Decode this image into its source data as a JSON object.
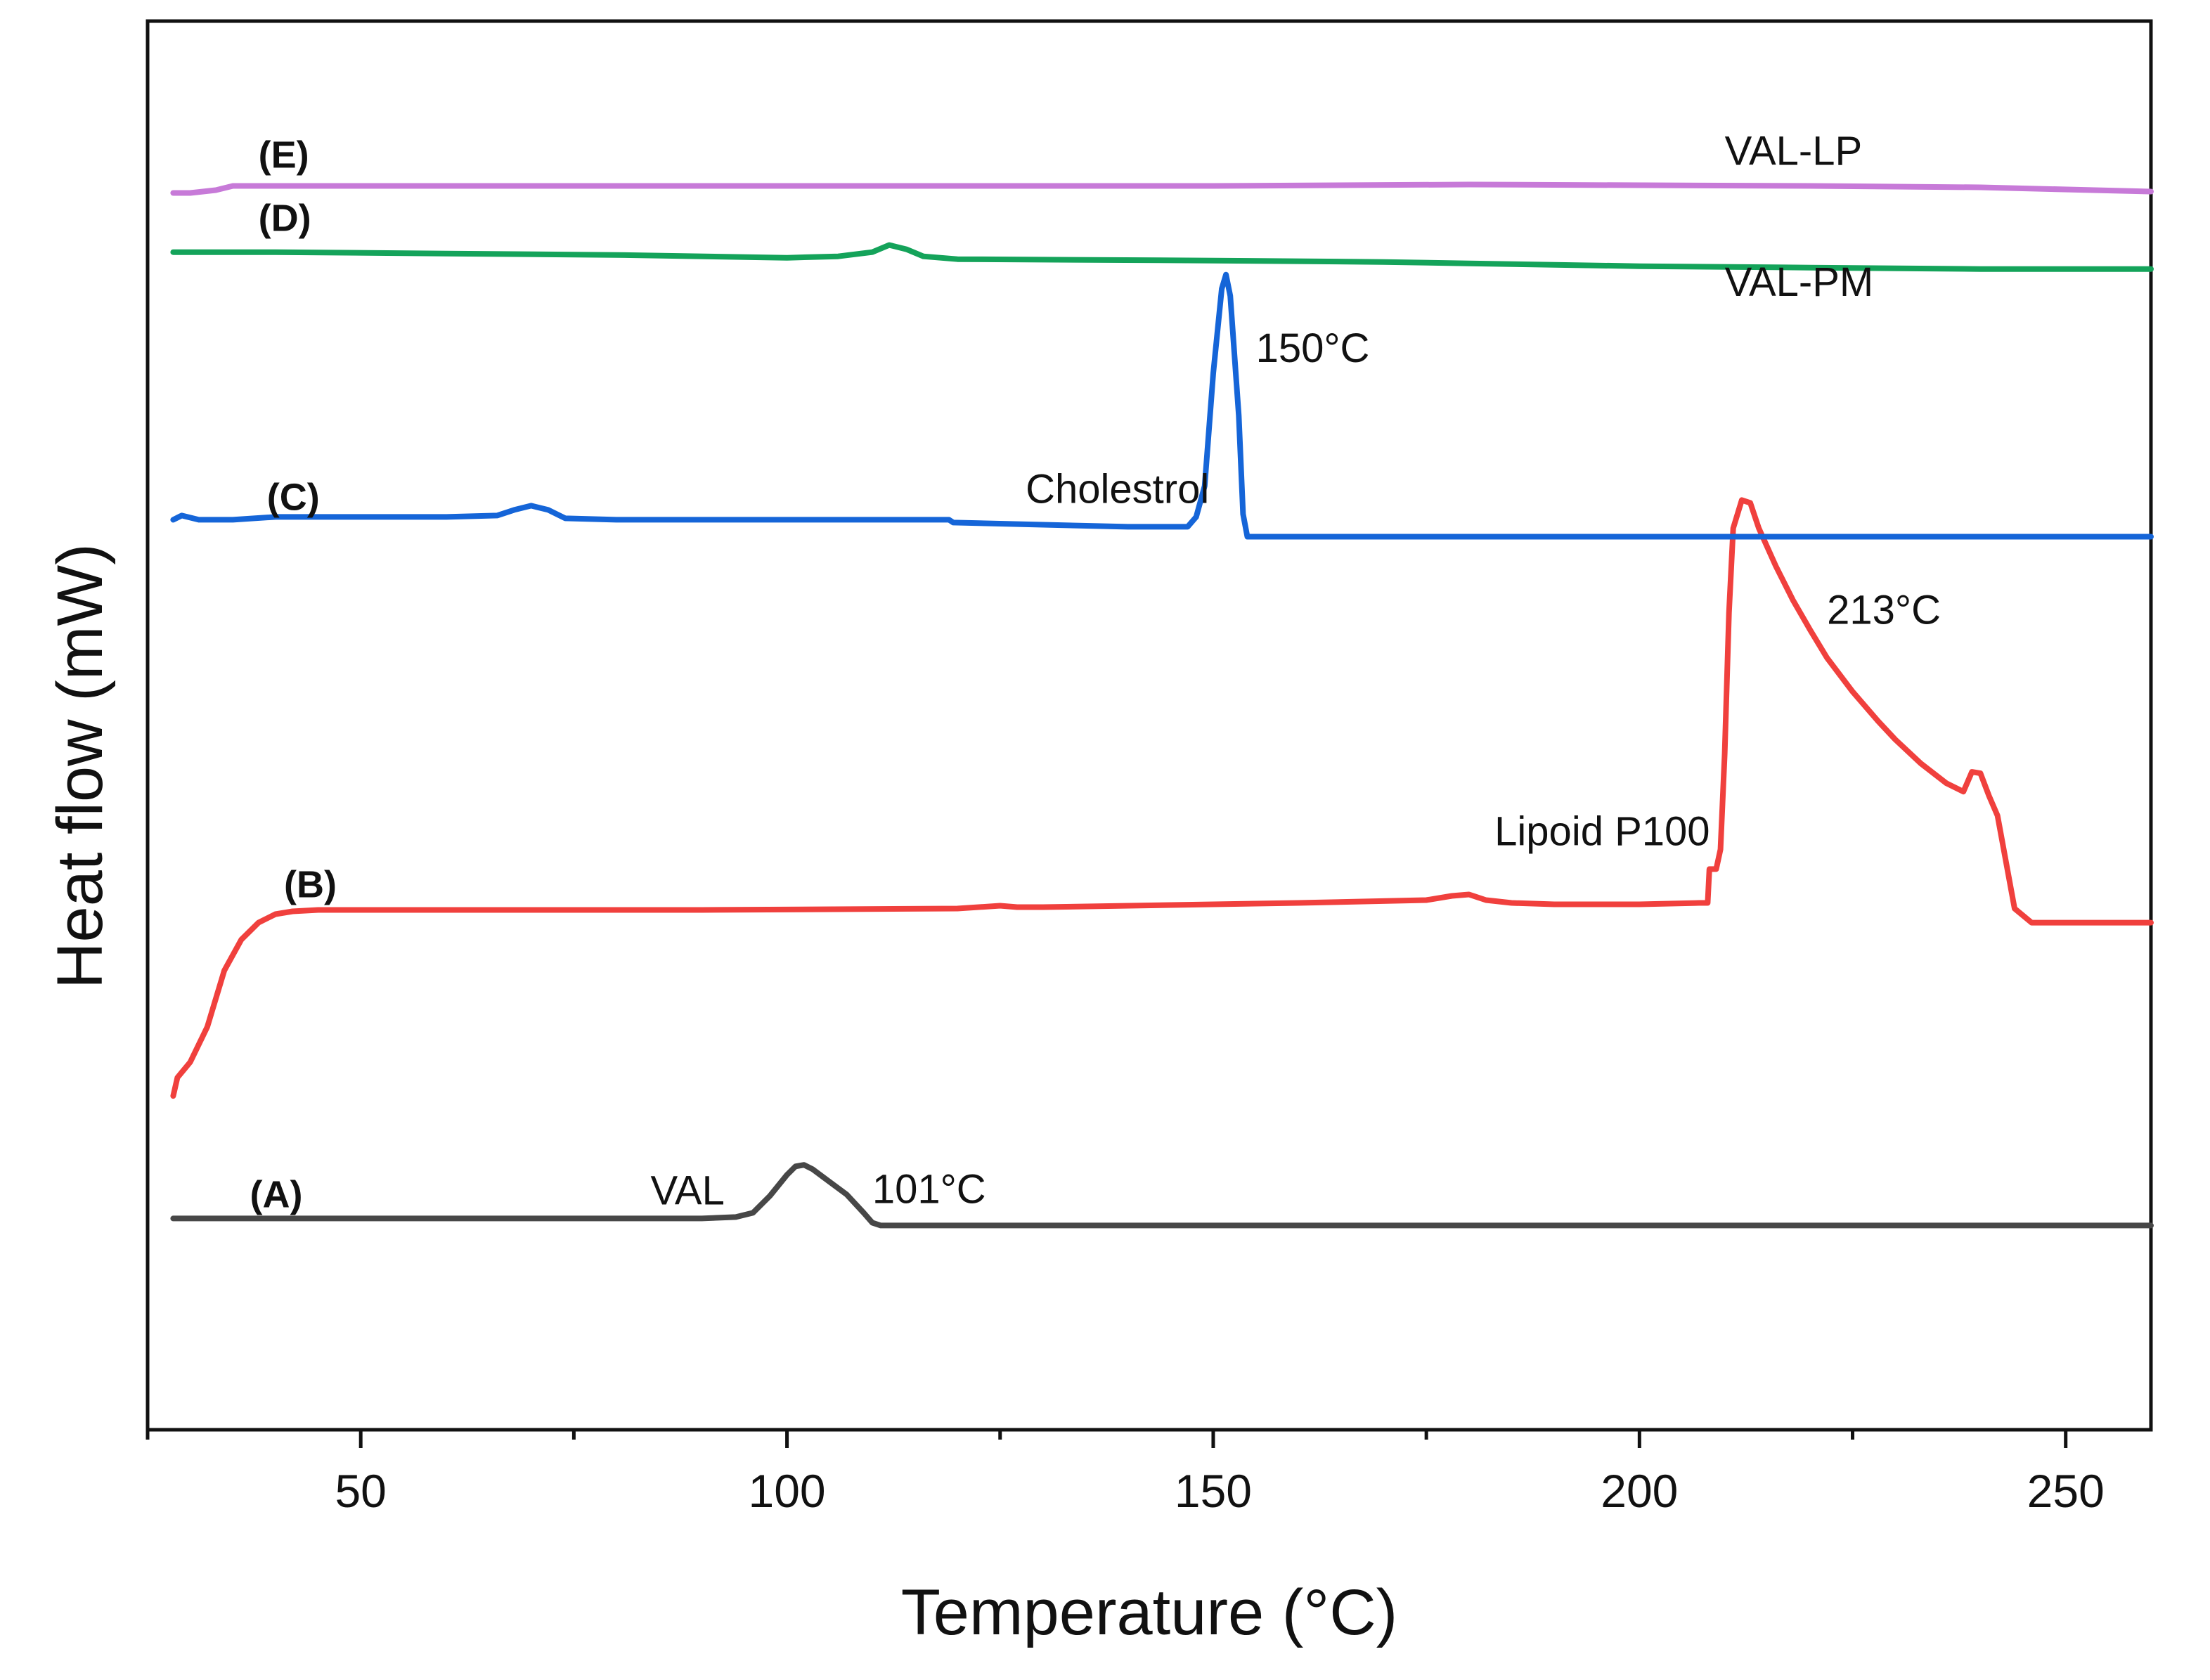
{
  "chart_data": {
    "type": "line",
    "title": "",
    "xlabel": "Temperature (°C)",
    "ylabel": "Heat flow (mW)",
    "xlim": [
      25,
      260
    ],
    "x_ticks": [
      50,
      100,
      150,
      200,
      250
    ],
    "x_tick_labels": [
      "50",
      "100",
      "150",
      "200",
      "250"
    ],
    "ylim": [
      0,
      100
    ],
    "y_ticks_shown": false,
    "grid": false,
    "series": [
      {
        "name": "(A)",
        "color": "#474747",
        "points": [
          [
            28,
            15.0
          ],
          [
            50,
            15.0
          ],
          [
            75,
            15.0
          ],
          [
            90,
            15.0
          ],
          [
            94,
            15.1
          ],
          [
            96,
            15.4
          ],
          [
            98,
            16.6
          ],
          [
            100,
            18.1
          ],
          [
            101,
            18.7
          ],
          [
            102,
            18.8
          ],
          [
            103,
            18.5
          ],
          [
            105,
            17.6
          ],
          [
            107,
            16.7
          ],
          [
            109,
            15.4
          ],
          [
            110,
            14.7
          ],
          [
            111,
            14.5
          ],
          [
            130,
            14.5
          ],
          [
            180,
            14.5
          ],
          [
            260,
            14.5
          ]
        ]
      },
      {
        "name": "(B)",
        "color": "#f0403d",
        "points": [
          [
            28,
            23.7
          ],
          [
            28.5,
            25.0
          ],
          [
            30,
            26.1
          ],
          [
            32,
            28.6
          ],
          [
            34,
            32.6
          ],
          [
            36,
            34.8
          ],
          [
            38,
            36.0
          ],
          [
            40,
            36.6
          ],
          [
            42,
            36.8
          ],
          [
            45,
            36.9
          ],
          [
            60,
            36.9
          ],
          [
            90,
            36.9
          ],
          [
            120,
            37.0
          ],
          [
            125,
            37.2
          ],
          [
            127,
            37.1
          ],
          [
            130,
            37.1
          ],
          [
            160,
            37.4
          ],
          [
            175,
            37.6
          ],
          [
            178,
            37.9
          ],
          [
            180,
            38.0
          ],
          [
            182,
            37.6
          ],
          [
            185,
            37.4
          ],
          [
            190,
            37.3
          ],
          [
            200,
            37.3
          ],
          [
            207,
            37.4
          ],
          [
            208,
            37.4
          ],
          [
            208.2,
            39.8
          ],
          [
            209,
            39.8
          ],
          [
            209.5,
            41.2
          ],
          [
            210,
            48.0
          ],
          [
            210.5,
            58.0
          ],
          [
            211,
            64.0
          ],
          [
            212,
            66.0
          ],
          [
            213,
            65.8
          ],
          [
            214,
            64.0
          ],
          [
            216,
            61.3
          ],
          [
            218,
            58.9
          ],
          [
            220,
            56.8
          ],
          [
            222,
            54.8
          ],
          [
            225,
            52.4
          ],
          [
            228,
            50.3
          ],
          [
            230,
            49.0
          ],
          [
            233,
            47.3
          ],
          [
            236,
            45.9
          ],
          [
            238,
            45.3
          ],
          [
            239,
            46.7
          ],
          [
            240,
            46.6
          ],
          [
            241,
            45.0
          ],
          [
            242,
            43.6
          ],
          [
            244,
            37.0
          ],
          [
            246,
            36.0
          ],
          [
            250,
            36.0
          ],
          [
            260,
            36.0
          ]
        ]
      },
      {
        "name": "(C)",
        "color": "#1565d8",
        "points": [
          [
            28,
            64.6
          ],
          [
            29,
            64.9
          ],
          [
            31,
            64.6
          ],
          [
            35,
            64.6
          ],
          [
            40,
            64.8
          ],
          [
            50,
            64.8
          ],
          [
            60,
            64.8
          ],
          [
            66,
            64.9
          ],
          [
            68,
            65.3
          ],
          [
            70,
            65.6
          ],
          [
            72,
            65.3
          ],
          [
            74,
            64.7
          ],
          [
            80,
            64.6
          ],
          [
            100,
            64.6
          ],
          [
            119,
            64.6
          ],
          [
            119.5,
            64.4
          ],
          [
            140,
            64.1
          ],
          [
            147,
            64.1
          ],
          [
            148,
            64.8
          ],
          [
            149,
            67.0
          ],
          [
            150,
            75.0
          ],
          [
            151,
            81.0
          ],
          [
            151.5,
            82.0
          ],
          [
            152,
            80.5
          ],
          [
            153,
            72.0
          ],
          [
            153.5,
            65.0
          ],
          [
            154,
            63.4
          ],
          [
            170,
            63.4
          ],
          [
            200,
            63.4
          ],
          [
            260,
            63.4
          ]
        ]
      },
      {
        "name": "(D)",
        "color": "#14a35a",
        "points": [
          [
            28,
            83.6
          ],
          [
            40,
            83.6
          ],
          [
            60,
            83.5
          ],
          [
            80,
            83.4
          ],
          [
            100,
            83.2
          ],
          [
            106,
            83.3
          ],
          [
            110,
            83.6
          ],
          [
            112,
            84.1
          ],
          [
            114,
            83.8
          ],
          [
            116,
            83.3
          ],
          [
            120,
            83.1
          ],
          [
            150,
            83.0
          ],
          [
            170,
            82.9
          ],
          [
            180,
            82.8
          ],
          [
            200,
            82.6
          ],
          [
            220,
            82.5
          ],
          [
            240,
            82.4
          ],
          [
            260,
            82.4
          ]
        ]
      },
      {
        "name": "(E)",
        "color": "#c77ad8",
        "points": [
          [
            28,
            87.8
          ],
          [
            30,
            87.8
          ],
          [
            33,
            88.0
          ],
          [
            35,
            88.3
          ],
          [
            40,
            88.3
          ],
          [
            60,
            88.3
          ],
          [
            100,
            88.3
          ],
          [
            150,
            88.3
          ],
          [
            180,
            88.4
          ],
          [
            220,
            88.3
          ],
          [
            240,
            88.2
          ],
          [
            260,
            87.9
          ]
        ]
      }
    ],
    "series_labels": [
      {
        "text": "(A)",
        "x": 37,
        "y": 15.8
      },
      {
        "text": "(B)",
        "x": 41,
        "y": 37.8
      },
      {
        "text": "(C)",
        "x": 39,
        "y": 65.3
      },
      {
        "text": "(D)",
        "x": 38,
        "y": 85.1
      },
      {
        "text": "(E)",
        "x": 38,
        "y": 89.6
      }
    ],
    "annotations": [
      {
        "text": "VAL",
        "x": 84,
        "y": 16.0
      },
      {
        "text": "101°C",
        "x": 110,
        "y": 16.1
      },
      {
        "text": "Lipoid P100",
        "x": 183,
        "y": 41.5
      },
      {
        "text": "213°C",
        "x": 222,
        "y": 57.2
      },
      {
        "text": "Cholestrol",
        "x": 128,
        "y": 65.8
      },
      {
        "text": "150°C",
        "x": 155,
        "y": 75.8
      },
      {
        "text": "VAL-PM",
        "x": 210,
        "y": 80.5
      },
      {
        "text": "VAL-LP",
        "x": 210,
        "y": 89.8
      }
    ]
  }
}
